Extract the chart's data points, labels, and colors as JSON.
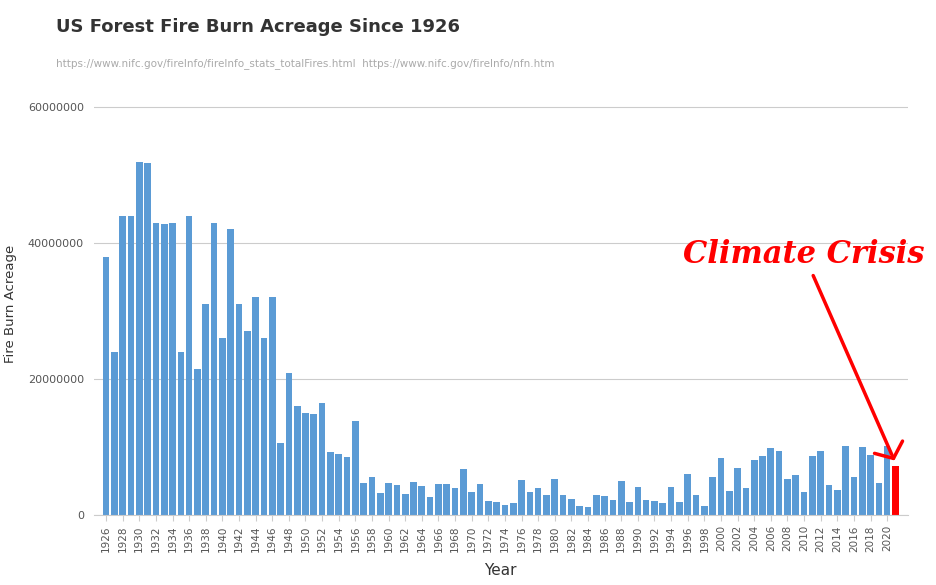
{
  "title": "US Forest Fire Burn Acreage Since 1926",
  "subtitle": "https://www.nifc.gov/fireInfo/fireInfo_stats_totalFires.html  https://www.nifc.gov/fireInfo/nfn.htm",
  "xlabel": "Year",
  "ylabel": "Fire Burn Acreage",
  "annotation_text": "Climate Crisis",
  "background_color": "#ffffff",
  "bar_color": "#5b9bd5",
  "last_bar_color": "#ff0000",
  "ylim": [
    0,
    62000000
  ],
  "yticks": [
    0,
    20000000,
    40000000,
    60000000
  ],
  "years": [
    1926,
    1927,
    1928,
    1929,
    1930,
    1931,
    1932,
    1933,
    1934,
    1935,
    1936,
    1937,
    1938,
    1939,
    1940,
    1941,
    1942,
    1943,
    1944,
    1945,
    1946,
    1947,
    1948,
    1949,
    1950,
    1951,
    1952,
    1953,
    1954,
    1955,
    1956,
    1957,
    1958,
    1959,
    1960,
    1961,
    1962,
    1963,
    1964,
    1965,
    1966,
    1967,
    1968,
    1969,
    1970,
    1971,
    1972,
    1973,
    1974,
    1975,
    1976,
    1977,
    1978,
    1979,
    1980,
    1981,
    1982,
    1983,
    1984,
    1985,
    1986,
    1987,
    1988,
    1989,
    1990,
    1991,
    1992,
    1993,
    1994,
    1995,
    1996,
    1997,
    1998,
    1999,
    2000,
    2001,
    2002,
    2003,
    2004,
    2005,
    2006,
    2007,
    2008,
    2009,
    2010,
    2011,
    2012,
    2013,
    2014,
    2015,
    2016,
    2017,
    2018,
    2019,
    2020,
    2021
  ],
  "values": [
    38000000,
    24000000,
    44000000,
    44000000,
    52000000,
    51800000,
    43000000,
    42800000,
    43000000,
    24000000,
    44000000,
    21500000,
    31000000,
    43000000,
    26000000,
    42000000,
    31000000,
    27000000,
    32000000,
    26000000,
    32000000,
    10600000,
    20800000,
    16000000,
    15000000,
    14900000,
    16500000,
    9300000,
    9000000,
    8500000,
    13800000,
    4700000,
    5500000,
    3200000,
    4700000,
    4400000,
    3000000,
    4900000,
    4300000,
    2600000,
    4600000,
    4600000,
    4000000,
    6700000,
    3300000,
    4600000,
    2100000,
    1900000,
    1400000,
    1800000,
    5100000,
    3300000,
    3900000,
    2950000,
    5260000,
    2910000,
    2390000,
    1320000,
    1150000,
    2900000,
    2720000,
    2170000,
    5009290,
    1827310,
    4070000,
    2237000,
    2069929,
    1797574,
    4073579,
    1840546,
    6065998,
    2856959,
    1329704,
    5626093,
    8422237,
    3570911,
    6937584,
    3960842,
    8097880,
    8689389,
    9873745,
    9328045,
    5292468,
    5921786,
    3422724,
    8711367,
    9326238,
    4319546,
    3595613,
    10125149,
    5509995,
    10026086,
    8767492,
    4664364,
    10122336,
    7125643
  ]
}
